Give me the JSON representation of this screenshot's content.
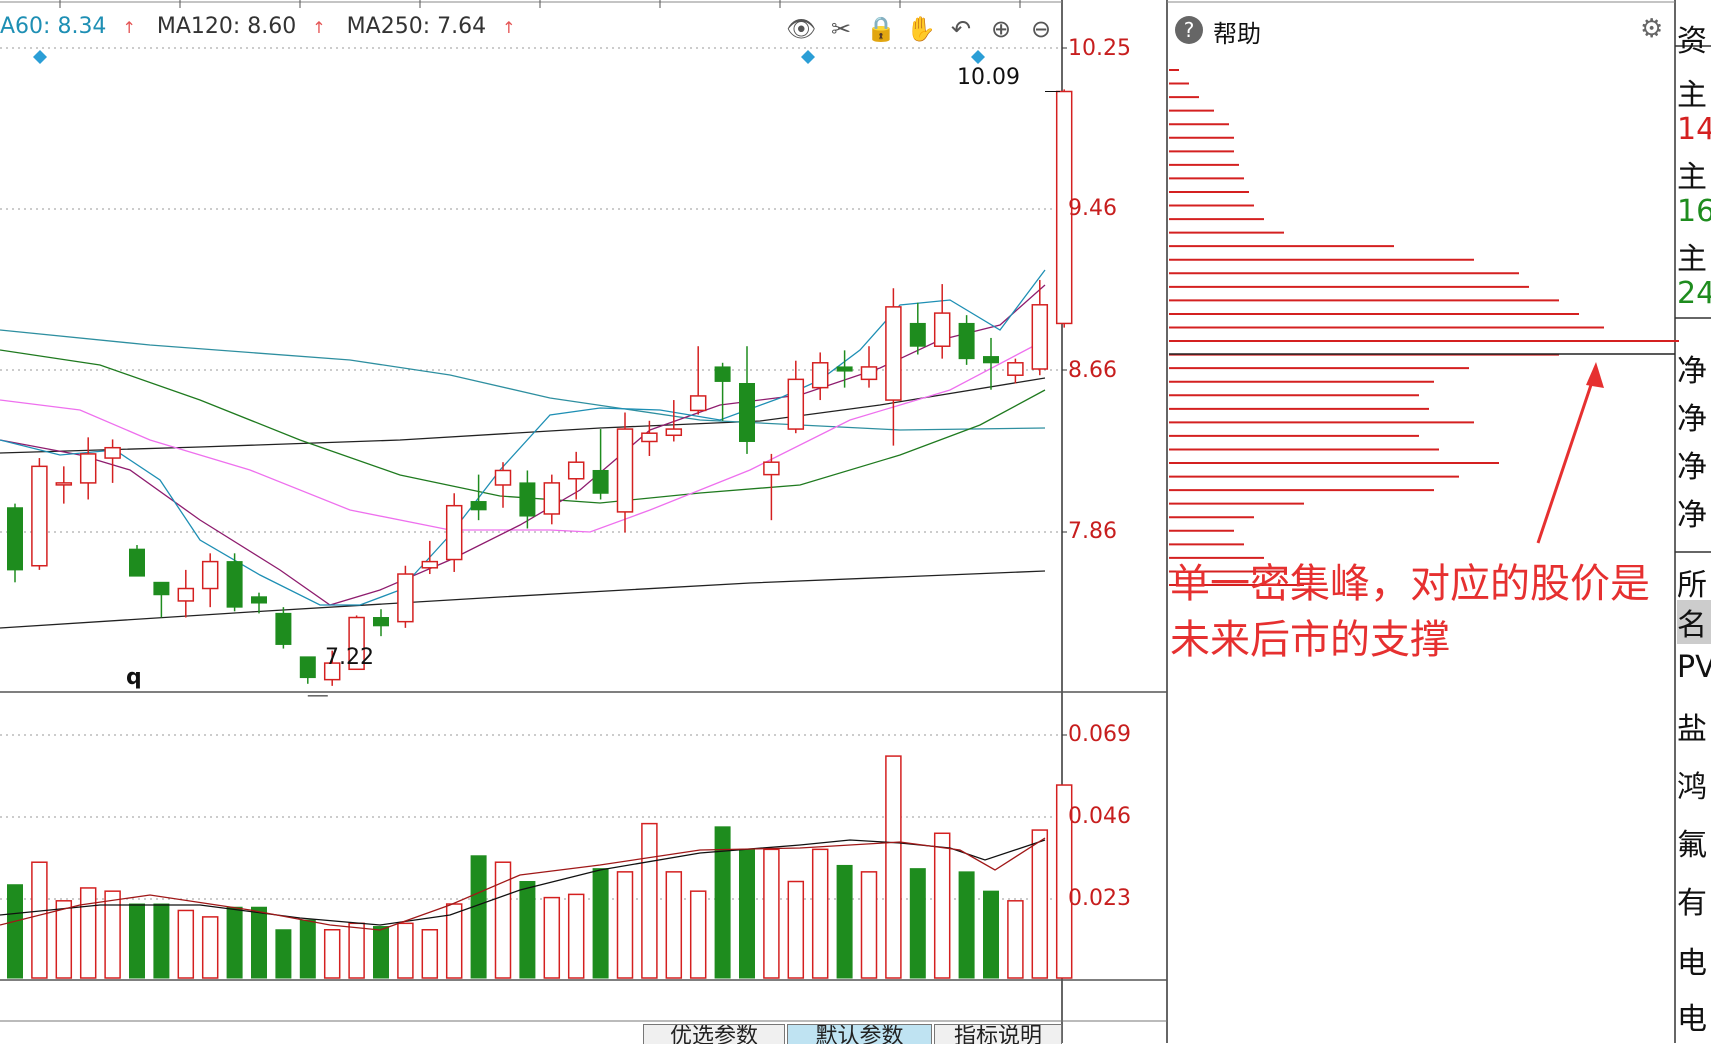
{
  "ma_bar": {
    "items": [
      {
        "label": "A60: 8.34",
        "color": "#1e8fb4",
        "arrow": "↑"
      },
      {
        "label": "MA120: 8.60",
        "color": "#222222",
        "arrow": "↑"
      },
      {
        "label": "MA250: 7.64",
        "color": "#222222",
        "arrow": "↑"
      }
    ]
  },
  "toolbar": {
    "icons": [
      "eye-icon",
      "scissors-icon",
      "lock-icon",
      "hand-icon",
      "undo-icon",
      "zoom-in-icon",
      "zoom-out-icon"
    ],
    "glyphs": [
      "👁",
      "✂",
      "🔒",
      "✋",
      "↶",
      "⊕",
      "⊖"
    ]
  },
  "price_axis": {
    "labels": [
      "10.25",
      "9.46",
      "8.66",
      "7.86"
    ]
  },
  "volume_axis": {
    "labels": [
      "0.069",
      "0.046",
      "0.023"
    ]
  },
  "markers": {
    "high_price": "10.09",
    "low_price": "7.22",
    "q_label": "q"
  },
  "help_panel": {
    "label": "帮助",
    "icon_glyph": "?",
    "gear_glyph": "⚙"
  },
  "annotation": {
    "line1": "单一密集峰，对应的股价是",
    "line2": "未来后市的支撑"
  },
  "right_column": [
    "资",
    "主",
    "14",
    "主",
    "16",
    "主",
    "24",
    "净",
    "净",
    "净",
    "净",
    "所",
    "名",
    "PV",
    "盐",
    "鸿",
    "氟",
    "有",
    "电",
    "电"
  ],
  "tabs": [
    {
      "label": "优选参数",
      "active": false
    },
    {
      "label": "默认参数",
      "active": true
    },
    {
      "label": "指标说明",
      "active": false
    }
  ],
  "colors": {
    "up": "#d42020",
    "down": "#1e8c1e",
    "ma5": "#1e8fb4",
    "ma10": "#8e1c6e",
    "ma20": "#ee70ee",
    "ma30": "#1f7a1f",
    "ma60": "#2e8fa0",
    "ma120": "#222222",
    "ma250": "#222222",
    "axis_label": "#c71e1e",
    "chip": "#d42020",
    "annotation": "#e63030"
  },
  "chart_data": {
    "type": "candlestick",
    "y_range": [
      7.2,
      10.3
    ],
    "candles": [
      {
        "o": 8.08,
        "c": 7.78,
        "h": 8.1,
        "l": 7.72,
        "dir": "down"
      },
      {
        "o": 7.8,
        "c": 8.28,
        "h": 8.32,
        "l": 7.78,
        "dir": "up"
      },
      {
        "o": 8.2,
        "c": 8.2,
        "h": 8.28,
        "l": 8.1,
        "dir": "up"
      },
      {
        "o": 8.2,
        "c": 8.34,
        "h": 8.42,
        "l": 8.12,
        "dir": "up"
      },
      {
        "o": 8.32,
        "c": 8.37,
        "h": 8.41,
        "l": 8.2,
        "dir": "up"
      },
      {
        "o": 7.88,
        "c": 7.75,
        "h": 7.9,
        "l": 7.75,
        "dir": "down"
      },
      {
        "o": 7.72,
        "c": 7.66,
        "h": 7.72,
        "l": 7.55,
        "dir": "down"
      },
      {
        "o": 7.63,
        "c": 7.69,
        "h": 7.78,
        "l": 7.55,
        "dir": "up"
      },
      {
        "o": 7.69,
        "c": 7.82,
        "h": 7.86,
        "l": 7.6,
        "dir": "up"
      },
      {
        "o": 7.82,
        "c": 7.6,
        "h": 7.86,
        "l": 7.58,
        "dir": "down"
      },
      {
        "o": 7.65,
        "c": 7.62,
        "h": 7.67,
        "l": 7.57,
        "dir": "down"
      },
      {
        "o": 7.57,
        "c": 7.42,
        "h": 7.6,
        "l": 7.4,
        "dir": "down"
      },
      {
        "o": 7.36,
        "c": 7.26,
        "h": 7.36,
        "l": 7.23,
        "dir": "down"
      },
      {
        "o": 7.25,
        "c": 7.33,
        "h": 7.39,
        "l": 7.22,
        "dir": "up"
      },
      {
        "o": 7.3,
        "c": 7.55,
        "h": 7.56,
        "l": 7.3,
        "dir": "up"
      },
      {
        "o": 7.55,
        "c": 7.51,
        "h": 7.59,
        "l": 7.46,
        "dir": "down"
      },
      {
        "o": 7.53,
        "c": 7.76,
        "h": 7.8,
        "l": 7.5,
        "dir": "up"
      },
      {
        "o": 7.79,
        "c": 7.82,
        "h": 7.92,
        "l": 7.76,
        "dir": "up"
      },
      {
        "o": 7.83,
        "c": 8.09,
        "h": 8.15,
        "l": 7.77,
        "dir": "up"
      },
      {
        "o": 8.11,
        "c": 8.07,
        "h": 8.24,
        "l": 8.02,
        "dir": "down"
      },
      {
        "o": 8.19,
        "c": 8.26,
        "h": 8.3,
        "l": 8.08,
        "dir": "up"
      },
      {
        "o": 8.2,
        "c": 8.04,
        "h": 8.26,
        "l": 7.98,
        "dir": "down"
      },
      {
        "o": 8.05,
        "c": 8.2,
        "h": 8.24,
        "l": 8.0,
        "dir": "up"
      },
      {
        "o": 8.22,
        "c": 8.3,
        "h": 8.35,
        "l": 8.12,
        "dir": "up"
      },
      {
        "o": 8.26,
        "c": 8.15,
        "h": 8.46,
        "l": 8.12,
        "dir": "down"
      },
      {
        "o": 8.06,
        "c": 8.46,
        "h": 8.54,
        "l": 7.96,
        "dir": "up"
      },
      {
        "o": 8.4,
        "c": 8.44,
        "h": 8.5,
        "l": 8.33,
        "dir": "up"
      },
      {
        "o": 8.43,
        "c": 8.46,
        "h": 8.6,
        "l": 8.4,
        "dir": "up"
      },
      {
        "o": 8.55,
        "c": 8.62,
        "h": 8.86,
        "l": 8.53,
        "dir": "up"
      },
      {
        "o": 8.76,
        "c": 8.69,
        "h": 8.78,
        "l": 8.5,
        "dir": "down"
      },
      {
        "o": 8.68,
        "c": 8.4,
        "h": 8.86,
        "l": 8.34,
        "dir": "down"
      },
      {
        "o": 8.24,
        "c": 8.3,
        "h": 8.34,
        "l": 8.02,
        "dir": "up"
      },
      {
        "o": 8.46,
        "c": 8.7,
        "h": 8.79,
        "l": 8.44,
        "dir": "up"
      },
      {
        "o": 8.66,
        "c": 8.78,
        "h": 8.83,
        "l": 8.6,
        "dir": "up"
      },
      {
        "o": 8.76,
        "c": 8.74,
        "h": 8.84,
        "l": 8.66,
        "dir": "down"
      },
      {
        "o": 8.7,
        "c": 8.76,
        "h": 8.86,
        "l": 8.66,
        "dir": "up"
      },
      {
        "o": 8.6,
        "c": 9.05,
        "h": 9.14,
        "l": 8.38,
        "dir": "up"
      },
      {
        "o": 8.97,
        "c": 8.86,
        "h": 9.07,
        "l": 8.82,
        "dir": "down"
      },
      {
        "o": 8.86,
        "c": 9.02,
        "h": 9.16,
        "l": 8.8,
        "dir": "up"
      },
      {
        "o": 8.97,
        "c": 8.8,
        "h": 9.01,
        "l": 8.77,
        "dir": "down"
      },
      {
        "o": 8.81,
        "c": 8.78,
        "h": 8.9,
        "l": 8.65,
        "dir": "down"
      },
      {
        "o": 8.72,
        "c": 8.78,
        "h": 8.8,
        "l": 8.68,
        "dir": "up"
      },
      {
        "o": 8.75,
        "c": 9.06,
        "h": 9.18,
        "l": 8.72,
        "dir": "up"
      },
      {
        "o": 8.97,
        "c": 10.09,
        "h": 10.1,
        "l": 8.95,
        "dir": "up"
      }
    ],
    "volume_range": [
      0,
      0.074
    ],
    "volumes": [
      0.029,
      0.036,
      0.024,
      0.028,
      0.027,
      0.023,
      0.023,
      0.021,
      0.019,
      0.022,
      0.022,
      0.015,
      0.018,
      0.015,
      0.017,
      0.016,
      0.017,
      0.015,
      0.023,
      0.038,
      0.036,
      0.03,
      0.025,
      0.026,
      0.034,
      0.033,
      0.048,
      0.033,
      0.027,
      0.047,
      0.04,
      0.04,
      0.03,
      0.04,
      0.035,
      0.033,
      0.069,
      0.034,
      0.045,
      0.033,
      0.027,
      0.024,
      0.046,
      0.06
    ],
    "chip_distribution": {
      "price_range": [
        7.55,
        10.25
      ],
      "peak_price": 8.67,
      "lengths": [
        10,
        20,
        30,
        45,
        60,
        65,
        65,
        70,
        75,
        80,
        85,
        95,
        115,
        225,
        305,
        350,
        360,
        390,
        410,
        435,
        510,
        390,
        300,
        265,
        250,
        260,
        305,
        250,
        270,
        330,
        290,
        265,
        135,
        85,
        65,
        75,
        95,
        115,
        135
      ]
    },
    "title": "",
    "xlabel": "",
    "ylabel": ""
  }
}
